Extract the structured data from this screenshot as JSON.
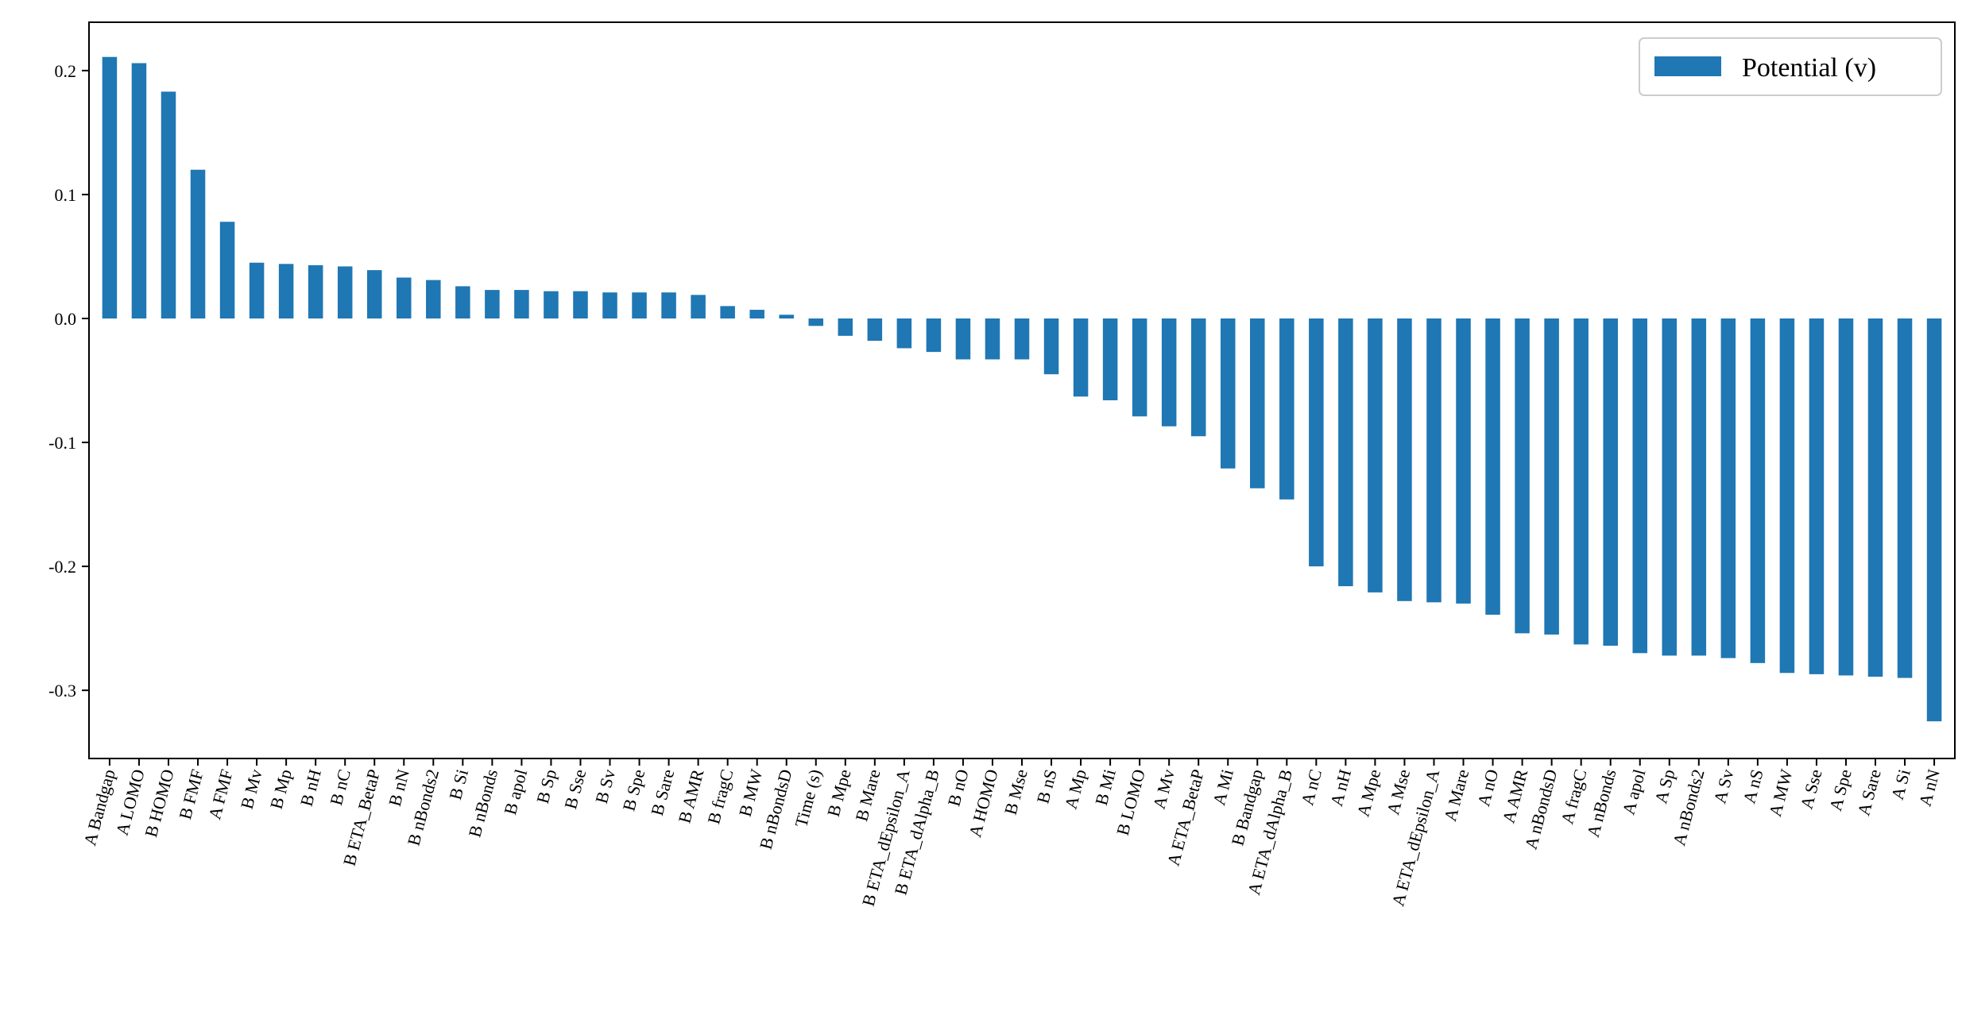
{
  "chart_data": {
    "type": "bar",
    "series": [
      {
        "name": "Potential (v)",
        "color": "#1f77b4",
        "values": [
          0.211,
          0.206,
          0.183,
          0.12,
          0.078,
          0.045,
          0.044,
          0.043,
          0.042,
          0.039,
          0.033,
          0.031,
          0.026,
          0.023,
          0.023,
          0.022,
          0.022,
          0.021,
          0.021,
          0.021,
          0.019,
          0.01,
          0.007,
          0.003,
          -0.006,
          -0.014,
          -0.018,
          -0.024,
          -0.027,
          -0.033,
          -0.033,
          -0.033,
          -0.045,
          -0.063,
          -0.066,
          -0.079,
          -0.087,
          -0.095,
          -0.121,
          -0.137,
          -0.146,
          -0.2,
          -0.216,
          -0.221,
          -0.228,
          -0.229,
          -0.23,
          -0.239,
          -0.254,
          -0.255,
          -0.263,
          -0.264,
          -0.27,
          -0.272,
          -0.272,
          -0.274,
          -0.278,
          -0.286,
          -0.287,
          -0.288,
          -0.289,
          -0.29,
          -0.325
        ]
      }
    ],
    "categories": [
      "A Bandgap",
      "A LOMO",
      "B HOMO",
      "B FMF",
      "A FMF",
      "B Mv",
      "B Mp",
      "B nH",
      "B nC",
      "B ETA_BetaP",
      "B nN",
      "B nBonds2",
      "B Si",
      "B nBonds",
      "B apol",
      "B Sp",
      "B Sse",
      "B Sv",
      "B Spe",
      "B Sare",
      "B AMR",
      "B fragC",
      "B MW",
      "B nBondsD",
      "Time (s)",
      "B Mpe",
      "B Mare",
      "B ETA_dEpsilon_A",
      "B ETA_dAlpha_B",
      "B nO",
      "A HOMO",
      "B Mse",
      "B nS",
      "A Mp",
      "B Mi",
      "B LOMO",
      "A Mv",
      "A ETA_BetaP",
      "A Mi",
      "B Bandgap",
      "A ETA_dAlpha_B",
      "A nC",
      "A nH",
      "A Mpe",
      "A Mse",
      "A ETA_dEpsilon_A",
      "A Mare",
      "A nO",
      "A AMR",
      "A nBondsD",
      "A fragC",
      "A nBonds",
      "A apol",
      "A Sp",
      "A nBonds2",
      "A Sv",
      "A nS",
      "A MW",
      "A Sse",
      "A Spe",
      "A Sare",
      "A Si",
      "A nN"
    ],
    "yticks": [
      "0.2",
      "0.1",
      "0.0",
      "-0.1",
      "-0.2",
      "-0.3"
    ],
    "ylim": [
      -0.355,
      0.239
    ],
    "legend": "top-right",
    "grid": false
  }
}
